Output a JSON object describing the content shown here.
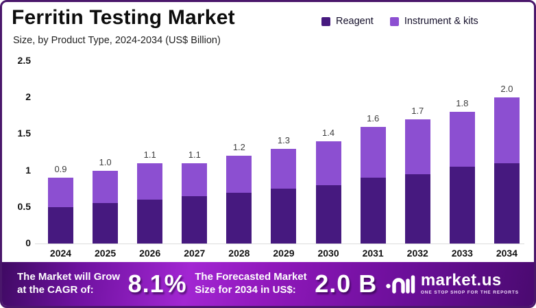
{
  "header": {
    "title": "Ferritin Testing Market",
    "subtitle": "Size, by Product Type, 2024-2034 (US$ Billion)"
  },
  "legend": [
    {
      "label": "Reagent",
      "color": "#46197f"
    },
    {
      "label": "Instrument & kits",
      "color": "#8c4fd1"
    }
  ],
  "chart_data": {
    "type": "bar",
    "stacked": true,
    "title": "Ferritin Testing Market",
    "subtitle": "Size, by Product Type, 2024-2034 (US$ Billion)",
    "categories": [
      "2024",
      "2025",
      "2026",
      "2027",
      "2028",
      "2029",
      "2030",
      "2031",
      "2032",
      "2033",
      "2034"
    ],
    "series": [
      {
        "name": "Reagent",
        "color": "#46197f",
        "values": [
          0.5,
          0.55,
          0.6,
          0.65,
          0.7,
          0.75,
          0.8,
          0.9,
          0.95,
          1.05,
          1.1
        ]
      },
      {
        "name": "Instrument & kits",
        "color": "#8c4fd1",
        "values": [
          0.4,
          0.45,
          0.5,
          0.45,
          0.5,
          0.55,
          0.6,
          0.7,
          0.75,
          0.75,
          0.9
        ]
      }
    ],
    "total_labels": [
      "0.9",
      "1.0",
      "1.1",
      "1.1",
      "1.2",
      "1.3",
      "1.4",
      "1.6",
      "1.7",
      "1.8",
      "2.0"
    ],
    "xlabel": "",
    "ylabel": "",
    "ylim": [
      0,
      2.5
    ],
    "yticks": [
      "0",
      "0.5",
      "1",
      "1.5",
      "2",
      "2.5"
    ],
    "grid": false,
    "legend_position": "top-right"
  },
  "banner": {
    "cagr_label_line1": "The Market will Grow",
    "cagr_label_line2": "at the CAGR of:",
    "cagr_value": "8.1%",
    "forecast_label_line1": "The Forecasted Market",
    "forecast_label_line2": "Size for 2034 in US$:",
    "forecast_value": "2.0 B",
    "logo_text": "market.us",
    "logo_tagline": "ONE STOP SHOP FOR THE REPORTS"
  },
  "colors": {
    "border": "#4a176b",
    "reagent": "#46197f",
    "instrument": "#8c4fd1",
    "banner_dark": "#3f0a63",
    "banner_bright": "#a226d2",
    "background": "#ffffff"
  }
}
